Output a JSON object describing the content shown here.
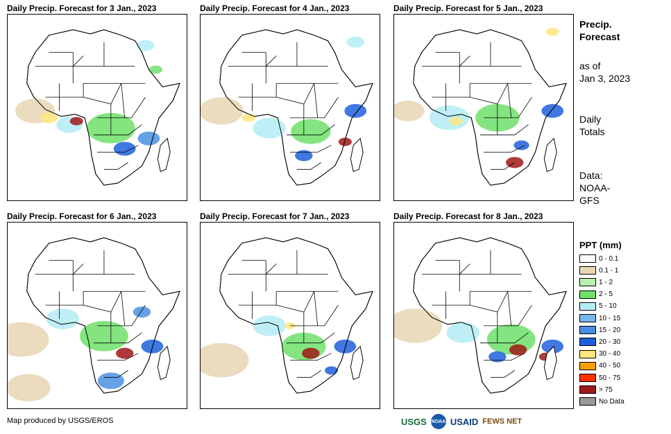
{
  "panels": [
    {
      "title": "Daily Precip. Forecast for 3 Jan., 2023"
    },
    {
      "title": "Daily Precip. Forecast for 4 Jan., 2023"
    },
    {
      "title": "Daily Precip. Forecast for 5 Jan., 2023"
    },
    {
      "title": "Daily Precip. Forecast for 6 Jan., 2023"
    },
    {
      "title": "Daily Precip. Forecast for 7 Jan., 2023"
    },
    {
      "title": "Daily Precip. Forecast for 8 Jan., 2023"
    }
  ],
  "sidebar": {
    "title_line1": "Precip.",
    "title_line2": "Forecast",
    "asof_line1": "as of",
    "asof_line2": "Jan 3, 2023",
    "daily_line1": "Daily",
    "daily_line2": "Totals",
    "data_line1": "Data:",
    "data_line2": "NOAA-",
    "data_line3": "GFS"
  },
  "legend": {
    "title": "PPT (mm)",
    "items": [
      {
        "label": "0 - 0.1",
        "color": "#ffffff"
      },
      {
        "label": "0.1 - 1",
        "color": "#e8d6b4"
      },
      {
        "label": "1 - 2",
        "color": "#b7f0b0"
      },
      {
        "label": "2 - 5",
        "color": "#6fe06a"
      },
      {
        "label": "5 - 10",
        "color": "#b4ecf4"
      },
      {
        "label": "10 - 15",
        "color": "#78b8ea"
      },
      {
        "label": "15 - 20",
        "color": "#4a90e2"
      },
      {
        "label": "20 - 30",
        "color": "#1f5fdc"
      },
      {
        "label": "30 - 40",
        "color": "#ffe680"
      },
      {
        "label": "40 - 50",
        "color": "#f5a000"
      },
      {
        "label": "50 - 75",
        "color": "#ff3300"
      },
      {
        "label": "> 75",
        "color": "#a01818"
      },
      {
        "label": "No Data",
        "color": "#999999"
      }
    ]
  },
  "footer": {
    "credit": "Map produced by USGS/EROS",
    "logos": [
      "USGS",
      "NOAA",
      "USAID",
      "FEWS NET"
    ]
  }
}
